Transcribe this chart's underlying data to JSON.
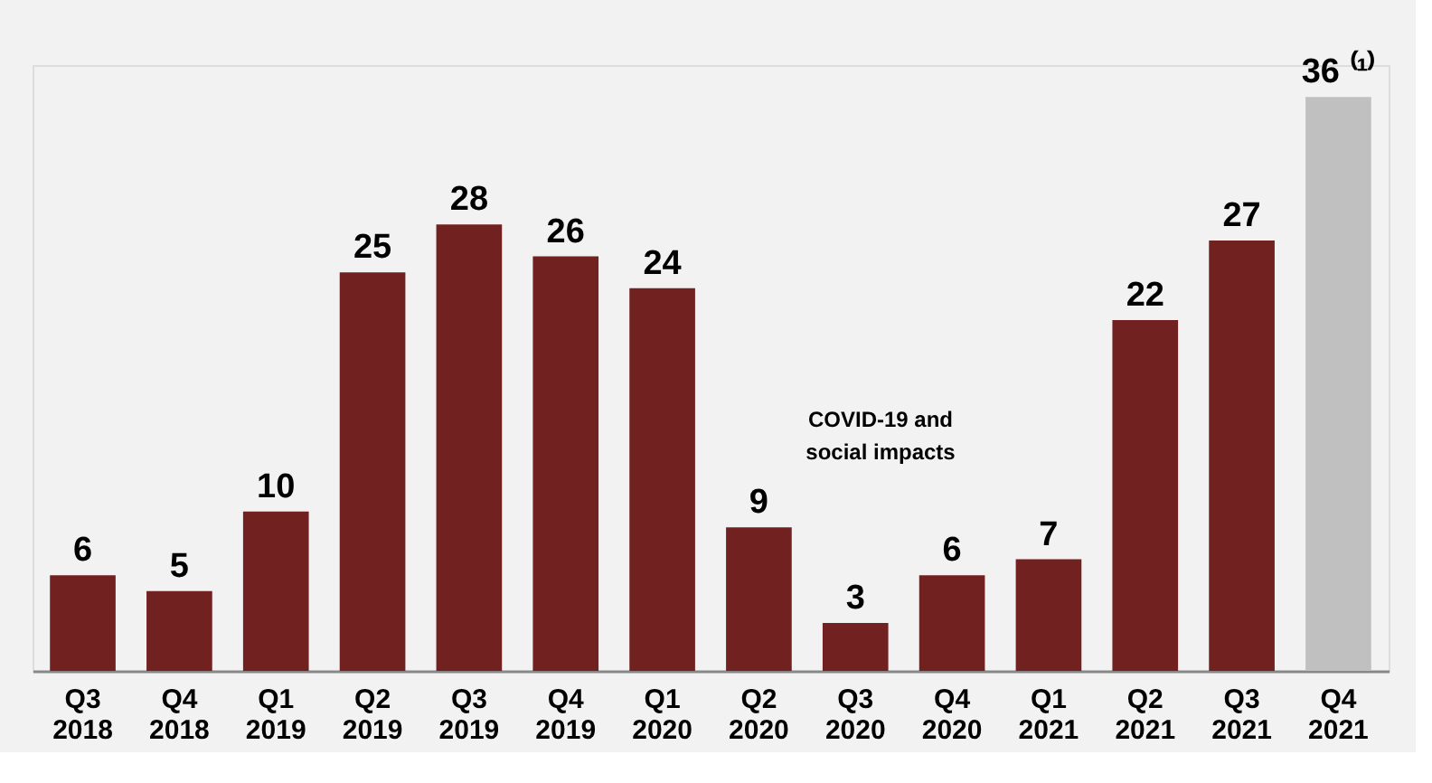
{
  "chart_data": {
    "type": "bar",
    "categories": [
      "Q3 2018",
      "Q4 2018",
      "Q1 2019",
      "Q2 2019",
      "Q3 2019",
      "Q4 2019",
      "Q1 2020",
      "Q2 2020",
      "Q3 2020",
      "Q4 2020",
      "Q1 2021",
      "Q2 2021",
      "Q3 2021",
      "Q4 2021"
    ],
    "values": [
      6,
      5,
      10,
      25,
      28,
      26,
      24,
      9,
      3,
      6,
      7,
      22,
      27,
      36
    ],
    "colors": [
      "#722121",
      "#722121",
      "#722121",
      "#722121",
      "#722121",
      "#722121",
      "#722121",
      "#722121",
      "#722121",
      "#722121",
      "#722121",
      "#722121",
      "#722121",
      "#c0c0c0"
    ],
    "value_labels": [
      "6",
      "5",
      "10",
      "25",
      "28",
      "26",
      "24",
      "9",
      "3",
      "6",
      "7",
      "22",
      "27",
      "36 ⁽¹⁾"
    ],
    "ylim": [
      0,
      38
    ],
    "tick_labels": "x",
    "grid": false,
    "annotations": [
      "COVID-19 and social impacts"
    ]
  }
}
